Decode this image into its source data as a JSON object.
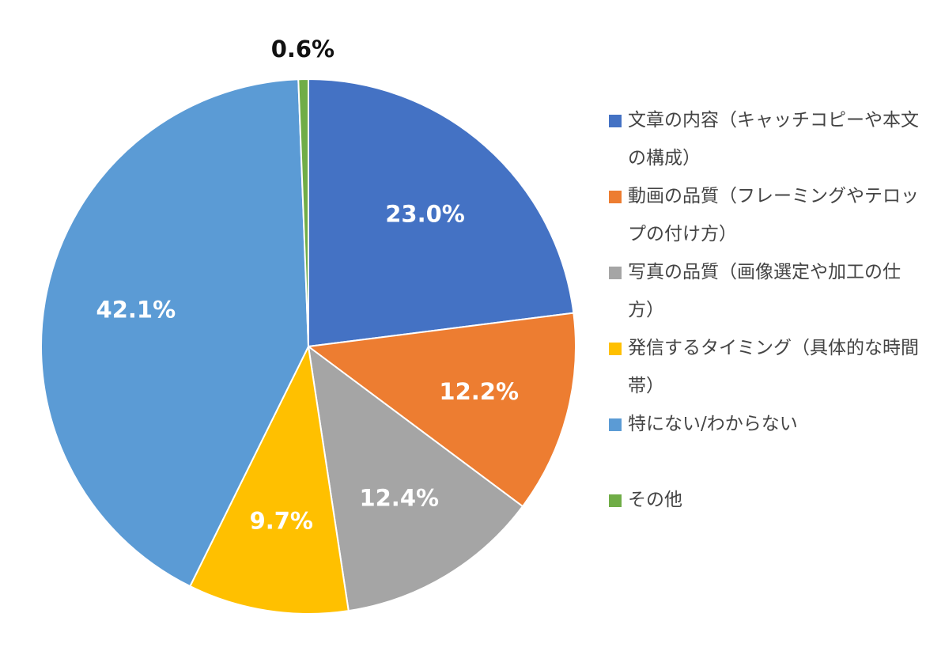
{
  "chart_data": {
    "type": "pie",
    "title": "",
    "start_angle_deg": 0,
    "direction": "clockwise",
    "legend_position": "right",
    "slices": [
      {
        "label": "文章の内容（キャッチコピーや本文の構成）",
        "value": 23.0,
        "display": "23.0%",
        "color": "#4472C4",
        "label_placement": "inside"
      },
      {
        "label": "動画の品質（フレーミングやテロップの付け方）",
        "value": 12.2,
        "display": "12.2%",
        "color": "#ED7D31",
        "label_placement": "inside"
      },
      {
        "label": "写真の品質（画像選定や加工の仕方）",
        "value": 12.4,
        "display": "12.4%",
        "color": "#A5A5A5",
        "label_placement": "inside"
      },
      {
        "label": "発信するタイミング（具体的な時間帯）",
        "value": 9.7,
        "display": "9.7%",
        "color": "#FFC000",
        "label_placement": "inside"
      },
      {
        "label": "特にない/わからない",
        "value": 42.1,
        "display": "42.1%",
        "color": "#5B9BD5",
        "label_placement": "inside"
      },
      {
        "label": "その他",
        "value": 0.6,
        "display": "0.6%",
        "color": "#70AD47",
        "label_placement": "outside"
      }
    ]
  }
}
